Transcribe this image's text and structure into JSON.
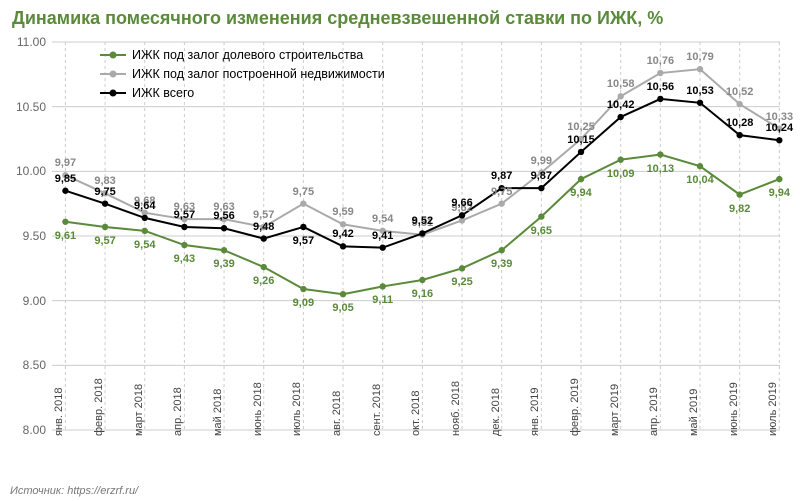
{
  "title": "Динамика помесячного изменения средневзвешенной ставки по ИЖК, %",
  "title_color": "#5a8a3a",
  "source": "Источник: https://erzrf.ru/",
  "background_color": "#ffffff",
  "grid_color": "#cccccc",
  "axis_color": "#888888",
  "ylim": [
    8.0,
    11.0
  ],
  "ytick_step": 0.5,
  "yticks": [
    "8.00",
    "8.50",
    "9.00",
    "9.50",
    "10.00",
    "10.50",
    "11.00"
  ],
  "categories": [
    "янв. 2018",
    "февр. 2018",
    "март 2018",
    "апр. 2018",
    "май 2018",
    "июнь 2018",
    "июль 2018",
    "авг. 2018",
    "сент. 2018",
    "окт. 2018",
    "нояб. 2018",
    "дек. 2018",
    "янв. 2019",
    "февр. 2019",
    "март 2019",
    "апр. 2019",
    "май 2019",
    "июнь 2019",
    "июль 2019"
  ],
  "series": [
    {
      "name": "ИЖК под залог долевого строительства",
      "color": "#5a8a3a",
      "label_color": "#5a8a3a",
      "line_width": 2,
      "marker": "circle",
      "values": [
        9.61,
        9.57,
        9.54,
        9.43,
        9.39,
        9.26,
        9.09,
        9.05,
        9.11,
        9.16,
        9.25,
        9.39,
        9.65,
        9.94,
        10.09,
        10.13,
        10.04,
        9.82,
        9.94
      ],
      "labels": [
        "9,61",
        "9,57",
        "9,54",
        "9,43",
        "9,39",
        "9,26",
        "9,09",
        "9,05",
        "9,11",
        "9,16",
        "9,25",
        "9,39",
        "9,65",
        "9,94",
        "10,09",
        "10,13",
        "10,04",
        "9,82",
        "9,94"
      ],
      "label_offset_y": 14
    },
    {
      "name": "ИЖК под залог построенной недвижимости",
      "color": "#aaaaaa",
      "label_color": "#888888",
      "line_width": 2,
      "marker": "circle",
      "values": [
        9.97,
        9.83,
        9.68,
        9.63,
        9.63,
        9.57,
        9.75,
        9.59,
        9.54,
        9.51,
        9.62,
        9.75,
        9.99,
        10.25,
        10.58,
        10.76,
        10.79,
        10.52,
        10.33
      ],
      "labels": [
        "9,97",
        "9,83",
        "9,68",
        "9,63",
        "9,63",
        "9,57",
        "9,75",
        "9,59",
        "9,54",
        "9,51",
        "9,62",
        "9,75",
        "9,99",
        "10,25",
        "10,58",
        "10,76",
        "10,79",
        "10,52",
        "10,33"
      ],
      "label_offset_y": -12
    },
    {
      "name": "ИЖК всего",
      "color": "#000000",
      "label_color": "#000000",
      "line_width": 2,
      "marker": "circle",
      "values": [
        9.85,
        9.75,
        9.64,
        9.57,
        9.56,
        9.48,
        9.57,
        9.42,
        9.41,
        9.52,
        9.66,
        9.87,
        9.87,
        10.15,
        10.42,
        10.56,
        10.53,
        10.28,
        10.24
      ],
      "labels": [
        "9,85",
        "9,75",
        "9,64",
        "9,57",
        "9,56",
        "9,48",
        "9,57",
        "9,42",
        "9,41",
        "9,52",
        "9,66",
        "9,87",
        "9,87",
        "10,15",
        "10,42",
        "10,56",
        "10,53",
        "10,28",
        "10,24"
      ],
      "label_offset_y": -12,
      "label_offset_override": {
        "6": 14
      }
    }
  ],
  "legend_font_size": 12.5,
  "label_font_size": 11
}
